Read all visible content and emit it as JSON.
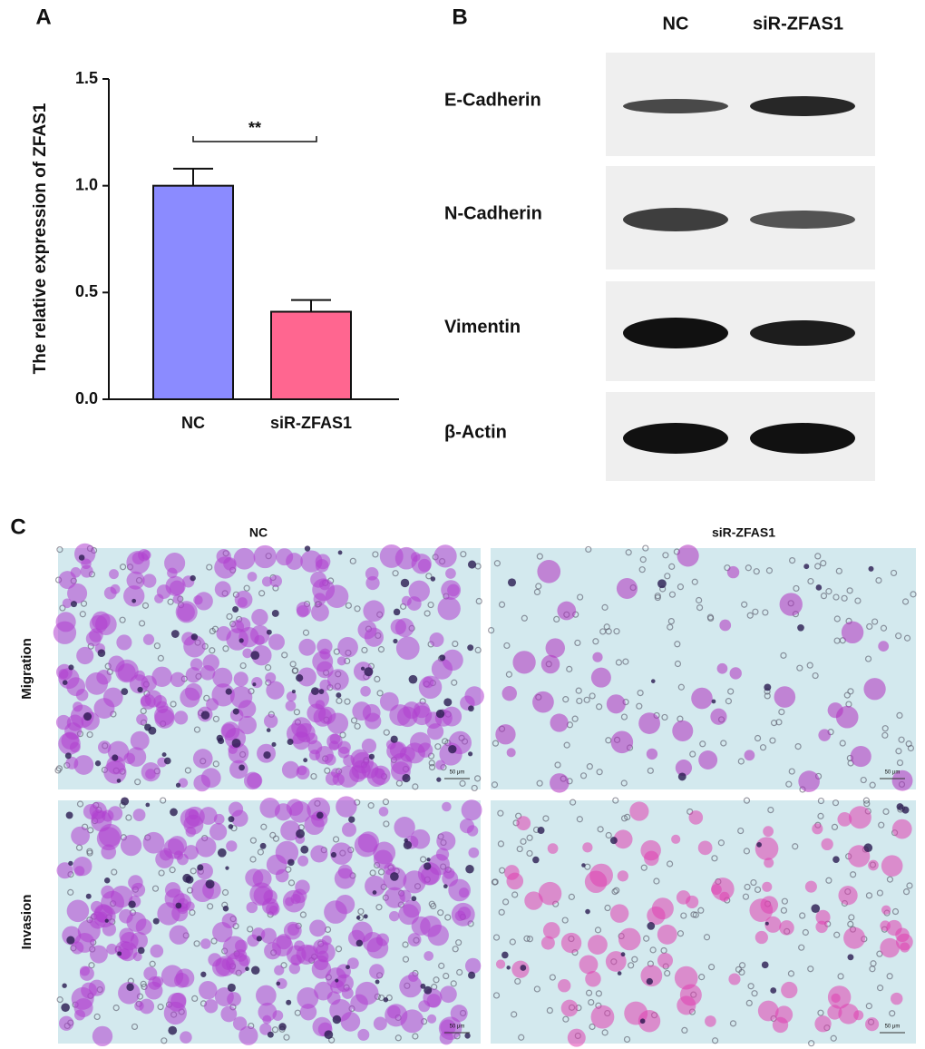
{
  "chart_data": {
    "type": "bar",
    "panel_label": "A",
    "y_label": "The relative expression of ZFAS1",
    "categories": [
      "NC",
      "siR-ZFAS1"
    ],
    "values": [
      1.0,
      0.41
    ],
    "errors": [
      0.08,
      0.055
    ],
    "colors": [
      "#8b8bff",
      "#ff6690"
    ],
    "ylim": [
      0,
      1.5
    ],
    "yticks": [
      {
        "value": 0,
        "label": "0.0"
      },
      0.5,
      {
        "value": 1,
        "label": "1.0"
      },
      1.5
    ],
    "annotation": "**"
  },
  "blot": {
    "panel_label": "B",
    "columns": [
      "NC",
      "siR-ZFAS1"
    ],
    "rows": [
      "E-Cadherin",
      "N-Cadherin",
      "Vimentin",
      "β-Actin"
    ]
  },
  "transwell": {
    "panel_label": "C",
    "columns": [
      "NC",
      "siR-ZFAS1"
    ],
    "rows": [
      "Migration",
      "Invasion"
    ],
    "scale_bar": "50 μm"
  }
}
